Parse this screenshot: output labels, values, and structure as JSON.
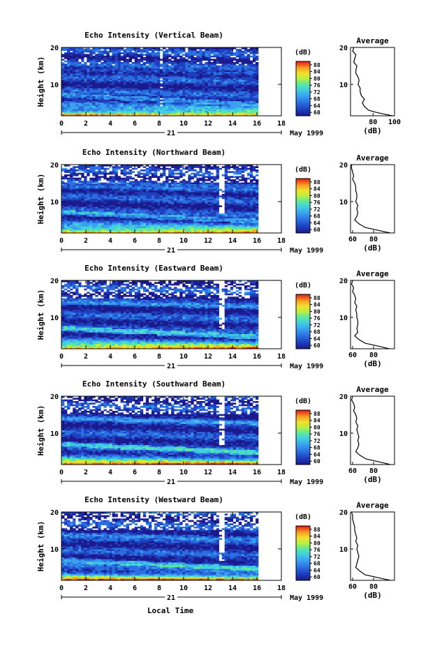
{
  "chart_data": [
    {
      "type": "heatmap",
      "title": "Echo Intensity (Vertical Beam)",
      "ylabel": "Height (km)",
      "y_ticks": [
        "20",
        "10"
      ],
      "x_ticks": [
        "0",
        "2",
        "4",
        "6",
        "8",
        "10",
        "12",
        "14",
        "16",
        "18"
      ],
      "xlim": [
        0,
        18
      ],
      "ylim": [
        1.5,
        20
      ],
      "date_day": "21",
      "date_month_year": "May 1999",
      "colorbar": {
        "unit": "(dB)",
        "ticks": [
          "88",
          "84",
          "80",
          "76",
          "72",
          "68",
          "64",
          "60"
        ],
        "range": [
          58,
          90
        ]
      },
      "average_profile": {
        "title": "Average",
        "xlabel": "(dB)",
        "x_ticks": [
          "80",
          "100"
        ],
        "xlim": [
          59,
          100
        ],
        "y_ticks": [
          "20",
          "10"
        ],
        "height_km": [
          20,
          19,
          18,
          17,
          16,
          15,
          14,
          13,
          12,
          11,
          10,
          9,
          8,
          7,
          6,
          5,
          4,
          3,
          2.5,
          2,
          1.5
        ],
        "values_db": [
          62,
          61,
          64,
          63,
          62,
          65,
          64,
          64,
          66,
          67,
          66,
          68,
          68,
          69,
          72,
          70,
          72,
          76,
          82,
          90,
          98
        ]
      }
    },
    {
      "type": "heatmap",
      "title": "Echo Intensity (Northward Beam)",
      "ylabel": "Height (km)",
      "y_ticks": [
        "20",
        "10"
      ],
      "x_ticks": [
        "0",
        "2",
        "4",
        "6",
        "8",
        "10",
        "12",
        "14",
        "16",
        "18"
      ],
      "xlim": [
        0,
        18
      ],
      "ylim": [
        1.5,
        20
      ],
      "date_day": "21",
      "date_month_year": "May 1999",
      "colorbar": {
        "unit": "(dB)",
        "ticks": [
          "88",
          "84",
          "80",
          "76",
          "72",
          "68",
          "64",
          "60"
        ],
        "range": [
          58,
          90
        ]
      },
      "average_profile": {
        "title": "Average",
        "xlabel": "(dB)",
        "x_ticks": [
          "60",
          "80"
        ],
        "xlim": [
          58,
          100
        ],
        "y_ticks": [
          "20",
          "10"
        ],
        "height_km": [
          20,
          19,
          18,
          17,
          16,
          15,
          14,
          13,
          12,
          11,
          10,
          9,
          8,
          7,
          6,
          5,
          4,
          3,
          2.5,
          2,
          1.5
        ],
        "values_db": [
          59,
          59,
          60,
          61,
          60,
          62,
          63,
          63,
          64,
          64,
          63,
          65,
          64,
          65,
          64,
          62,
          66,
          72,
          80,
          88,
          96
        ]
      }
    },
    {
      "type": "heatmap",
      "title": "Echo Intensity (Eastward Beam)",
      "ylabel": "Height (km)",
      "y_ticks": [
        "20",
        "10"
      ],
      "x_ticks": [
        "0",
        "2",
        "4",
        "6",
        "8",
        "10",
        "12",
        "14",
        "16",
        "18"
      ],
      "xlim": [
        0,
        18
      ],
      "ylim": [
        1.5,
        20
      ],
      "date_day": "21",
      "date_month_year": "May 1999",
      "colorbar": {
        "unit": "(dB)",
        "ticks": [
          "88",
          "84",
          "80",
          "76",
          "72",
          "68",
          "64",
          "60"
        ],
        "range": [
          58,
          90
        ]
      },
      "average_profile": {
        "title": "Average",
        "xlabel": "(dB)",
        "x_ticks": [
          "60",
          "80"
        ],
        "xlim": [
          58,
          100
        ],
        "y_ticks": [
          "20",
          "10"
        ],
        "height_km": [
          20,
          19,
          18,
          17,
          16,
          15,
          14,
          13,
          12,
          11,
          10,
          9,
          8,
          7,
          6,
          5,
          4,
          3,
          2.5,
          2,
          1.5
        ],
        "values_db": [
          60,
          59,
          61,
          60,
          62,
          63,
          62,
          64,
          63,
          64,
          64,
          65,
          65,
          64,
          65,
          62,
          66,
          72,
          80,
          88,
          95
        ]
      }
    },
    {
      "type": "heatmap",
      "title": "Echo Intensity (Southward Beam)",
      "ylabel": "Height (km)",
      "y_ticks": [
        "20",
        "10"
      ],
      "x_ticks": [
        "0",
        "2",
        "4",
        "6",
        "8",
        "10",
        "12",
        "14",
        "16",
        "18"
      ],
      "xlim": [
        0,
        18
      ],
      "ylim": [
        1.5,
        20
      ],
      "date_day": "21",
      "date_month_year": "May 1999",
      "colorbar": {
        "unit": "(dB)",
        "ticks": [
          "88",
          "84",
          "80",
          "76",
          "72",
          "68",
          "64",
          "60"
        ],
        "range": [
          58,
          90
        ]
      },
      "average_profile": {
        "title": "Average",
        "xlabel": "(dB)",
        "x_ticks": [
          "60",
          "80"
        ],
        "xlim": [
          58,
          100
        ],
        "y_ticks": [
          "20",
          "10"
        ],
        "height_km": [
          20,
          19,
          18,
          17,
          16,
          15,
          14,
          13,
          12,
          11,
          10,
          9,
          8,
          7,
          6,
          5,
          4,
          3,
          2.5,
          2,
          1.5
        ],
        "values_db": [
          60,
          59,
          61,
          62,
          61,
          63,
          64,
          63,
          65,
          64,
          65,
          66,
          65,
          66,
          65,
          63,
          67,
          73,
          81,
          89,
          96
        ]
      }
    },
    {
      "type": "heatmap",
      "title": "Echo Intensity (Westward Beam)",
      "ylabel": "Height (km)",
      "y_ticks": [
        "20",
        "10"
      ],
      "x_ticks": [
        "0",
        "2",
        "4",
        "6",
        "8",
        "10",
        "12",
        "14",
        "16",
        "18"
      ],
      "xlim": [
        0,
        18
      ],
      "ylim": [
        1.5,
        20
      ],
      "date_day": "21",
      "date_month_year": "May 1999",
      "colorbar": {
        "unit": "(dB)",
        "ticks": [
          "88",
          "84",
          "80",
          "76",
          "72",
          "68",
          "64",
          "60"
        ],
        "range": [
          58,
          90
        ]
      },
      "average_profile": {
        "title": "Average",
        "xlabel": "(dB)",
        "x_ticks": [
          "60",
          "80"
        ],
        "xlim": [
          58,
          100
        ],
        "y_ticks": [
          "20",
          "10"
        ],
        "height_km": [
          20,
          19,
          18,
          17,
          16,
          15,
          14,
          13,
          12,
          11,
          10,
          9,
          8,
          7,
          6,
          5,
          4,
          3,
          2.5,
          2,
          1.5
        ],
        "values_db": [
          59,
          60,
          60,
          61,
          62,
          62,
          63,
          64,
          63,
          65,
          64,
          65,
          66,
          65,
          64,
          63,
          67,
          72,
          80,
          88,
          96
        ]
      }
    }
  ],
  "shared_xlabel": "Local Time",
  "colormap": [
    "#1a1a8c",
    "#1f3fbf",
    "#2a6fe0",
    "#3aa0f0",
    "#40d0e0",
    "#5ce8a0",
    "#b8f040",
    "#f0e030",
    "#f8a020",
    "#f05020",
    "#e01818"
  ]
}
